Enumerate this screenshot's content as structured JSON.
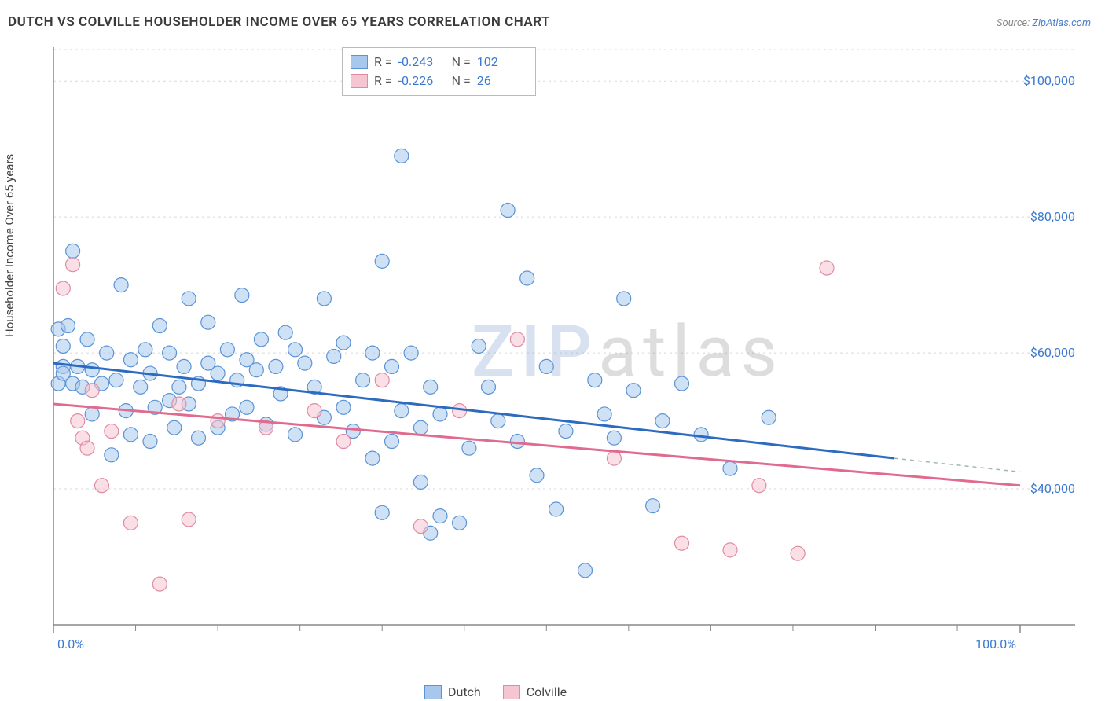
{
  "title": "DUTCH VS COLVILLE HOUSEHOLDER INCOME OVER 65 YEARS CORRELATION CHART",
  "source_prefix": "Source: ",
  "source_name": "ZipAtlas.com",
  "y_axis_label": "Householder Income Over 65 years",
  "watermark_a": "ZIP",
  "watermark_b": "atlas",
  "chart": {
    "type": "scatter",
    "background_color": "#ffffff",
    "grid_color": "#d8d8d8",
    "axis_color": "#888888",
    "xlim": [
      0,
      100
    ],
    "ylim": [
      20000,
      105000
    ],
    "x_ticks": [
      0,
      100
    ],
    "x_tick_labels": [
      "0.0%",
      "100.0%"
    ],
    "x_minor_ticks": [
      8.5,
      17,
      25.5,
      34,
      42.5,
      51,
      59.5,
      68,
      76.5,
      85,
      93.5
    ],
    "y_ticks": [
      40000,
      60000,
      80000,
      100000
    ],
    "y_tick_labels": [
      "$40,000",
      "$60,000",
      "$80,000",
      "$100,000"
    ],
    "tick_label_color": "#3b79d0",
    "tick_label_fontsize": 16,
    "marker_radius": 9,
    "marker_opacity": 0.55,
    "line_width": 3,
    "series": [
      {
        "name": "Dutch",
        "fill_color": "#a7c8ec",
        "stroke_color": "#5b93d6",
        "line_color": "#2d6bc0",
        "R": "-0.243",
        "N": "102",
        "trend": {
          "x1": 0,
          "y1": 58500,
          "x2": 87,
          "y2": 44500,
          "x2_ext": 100,
          "y2_ext": 42500
        },
        "points": [
          [
            0.5,
            63500
          ],
          [
            0.5,
            55500
          ],
          [
            1,
            61000
          ],
          [
            1,
            58000
          ],
          [
            1,
            57000
          ],
          [
            1.5,
            64000
          ],
          [
            2,
            75000
          ],
          [
            2,
            55500
          ],
          [
            2.5,
            58000
          ],
          [
            3,
            55000
          ],
          [
            3.5,
            62000
          ],
          [
            4,
            57500
          ],
          [
            4,
            51000
          ],
          [
            5,
            55500
          ],
          [
            5.5,
            60000
          ],
          [
            6,
            45000
          ],
          [
            6.5,
            56000
          ],
          [
            7,
            70000
          ],
          [
            7.5,
            51500
          ],
          [
            8,
            59000
          ],
          [
            8,
            48000
          ],
          [
            9,
            55000
          ],
          [
            9.5,
            60500
          ],
          [
            10,
            57000
          ],
          [
            10,
            47000
          ],
          [
            10.5,
            52000
          ],
          [
            11,
            64000
          ],
          [
            12,
            60000
          ],
          [
            12,
            53000
          ],
          [
            12.5,
            49000
          ],
          [
            13,
            55000
          ],
          [
            13.5,
            58000
          ],
          [
            14,
            68000
          ],
          [
            14,
            52500
          ],
          [
            15,
            55500
          ],
          [
            15,
            47500
          ],
          [
            16,
            64500
          ],
          [
            16,
            58500
          ],
          [
            17,
            57000
          ],
          [
            17,
            49000
          ],
          [
            18,
            60500
          ],
          [
            18.5,
            51000
          ],
          [
            19,
            56000
          ],
          [
            19.5,
            68500
          ],
          [
            20,
            59000
          ],
          [
            20,
            52000
          ],
          [
            21,
            57500
          ],
          [
            21.5,
            62000
          ],
          [
            22,
            49500
          ],
          [
            23,
            58000
          ],
          [
            23.5,
            54000
          ],
          [
            24,
            63000
          ],
          [
            25,
            60500
          ],
          [
            25,
            48000
          ],
          [
            26,
            58500
          ],
          [
            27,
            55000
          ],
          [
            28,
            68000
          ],
          [
            28,
            50500
          ],
          [
            29,
            59500
          ],
          [
            30,
            52000
          ],
          [
            30,
            61500
          ],
          [
            31,
            48500
          ],
          [
            32,
            56000
          ],
          [
            33,
            60000
          ],
          [
            33,
            44500
          ],
          [
            34,
            73500
          ],
          [
            34,
            36500
          ],
          [
            35,
            58000
          ],
          [
            35,
            47000
          ],
          [
            36,
            89000
          ],
          [
            36,
            51500
          ],
          [
            37,
            60000
          ],
          [
            38,
            49000
          ],
          [
            38,
            41000
          ],
          [
            39,
            33500
          ],
          [
            39,
            55000
          ],
          [
            40,
            51000
          ],
          [
            40,
            36000
          ],
          [
            42,
            35000
          ],
          [
            43,
            46000
          ],
          [
            44,
            61000
          ],
          [
            45,
            55000
          ],
          [
            46,
            50000
          ],
          [
            47,
            81000
          ],
          [
            48,
            47000
          ],
          [
            49,
            71000
          ],
          [
            50,
            42000
          ],
          [
            51,
            58000
          ],
          [
            52,
            37000
          ],
          [
            53,
            48500
          ],
          [
            55,
            28000
          ],
          [
            56,
            56000
          ],
          [
            57,
            51000
          ],
          [
            58,
            47500
          ],
          [
            59,
            68000
          ],
          [
            60,
            54500
          ],
          [
            62,
            37500
          ],
          [
            63,
            50000
          ],
          [
            65,
            55500
          ],
          [
            67,
            48000
          ],
          [
            70,
            43000
          ],
          [
            74,
            50500
          ]
        ]
      },
      {
        "name": "Colville",
        "fill_color": "#f5c5d1",
        "stroke_color": "#e08ba3",
        "line_color": "#e06b8e",
        "R": "-0.226",
        "N": "26",
        "trend": {
          "x1": 0,
          "y1": 52500,
          "x2": 100,
          "y2": 40500,
          "x2_ext": 100,
          "y2_ext": 40500
        },
        "points": [
          [
            1,
            69500
          ],
          [
            2,
            73000
          ],
          [
            2.5,
            50000
          ],
          [
            3,
            47500
          ],
          [
            3.5,
            46000
          ],
          [
            4,
            54500
          ],
          [
            5,
            40500
          ],
          [
            6,
            48500
          ],
          [
            8,
            35000
          ],
          [
            11,
            26000
          ],
          [
            13,
            52500
          ],
          [
            14,
            35500
          ],
          [
            17,
            50000
          ],
          [
            22,
            49000
          ],
          [
            27,
            51500
          ],
          [
            30,
            47000
          ],
          [
            34,
            56000
          ],
          [
            38,
            34500
          ],
          [
            42,
            51500
          ],
          [
            48,
            62000
          ],
          [
            58,
            44500
          ],
          [
            65,
            32000
          ],
          [
            70,
            31000
          ],
          [
            73,
            40500
          ],
          [
            77,
            30500
          ],
          [
            80,
            72500
          ]
        ]
      }
    ]
  },
  "stats_legend_labels": {
    "R": "R =",
    "N": "N ="
  },
  "bottom_legend": [
    {
      "label": "Dutch",
      "fill": "#a7c8ec",
      "stroke": "#5b93d6"
    },
    {
      "label": "Colville",
      "fill": "#f5c5d1",
      "stroke": "#e08ba3"
    }
  ]
}
